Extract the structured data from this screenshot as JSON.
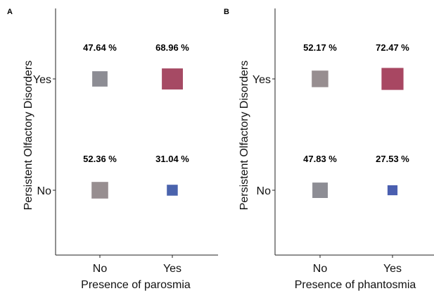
{
  "chart_data": [
    {
      "type": "scatter",
      "panel": "A",
      "x_categories": [
        "No",
        "Yes"
      ],
      "y_categories": [
        "No",
        "Yes"
      ],
      "xlabel": "Presence of parosmia",
      "ylabel": "Persistent Olfactory Disorders",
      "points": [
        {
          "x": "No",
          "y": "Yes",
          "value": 47.64,
          "label": "47.64 %",
          "color": "#8d8d94"
        },
        {
          "x": "Yes",
          "y": "Yes",
          "value": 68.96,
          "label": "68.96 %",
          "color": "#a64a64"
        },
        {
          "x": "No",
          "y": "No",
          "value": 52.36,
          "label": "52.36 %",
          "color": "#978e90"
        },
        {
          "x": "Yes",
          "y": "No",
          "value": 31.04,
          "label": "31.04 %",
          "color": "#4a63ad"
        }
      ]
    },
    {
      "type": "scatter",
      "panel": "B",
      "x_categories": [
        "No",
        "Yes"
      ],
      "y_categories": [
        "No",
        "Yes"
      ],
      "xlabel": "Presence of phantosmia",
      "ylabel": "Persistent Olfactory Disorders",
      "points": [
        {
          "x": "No",
          "y": "Yes",
          "value": 52.17,
          "label": "52.17 %",
          "color": "#978e90"
        },
        {
          "x": "Yes",
          "y": "Yes",
          "value": 72.47,
          "label": "72.47 %",
          "color": "#a84762"
        },
        {
          "x": "No",
          "y": "No",
          "value": 47.83,
          "label": "47.83 %",
          "color": "#8d8d94"
        },
        {
          "x": "Yes",
          "y": "No",
          "value": 27.53,
          "label": "27.53 %",
          "color": "#4a5fb0"
        }
      ]
    }
  ]
}
